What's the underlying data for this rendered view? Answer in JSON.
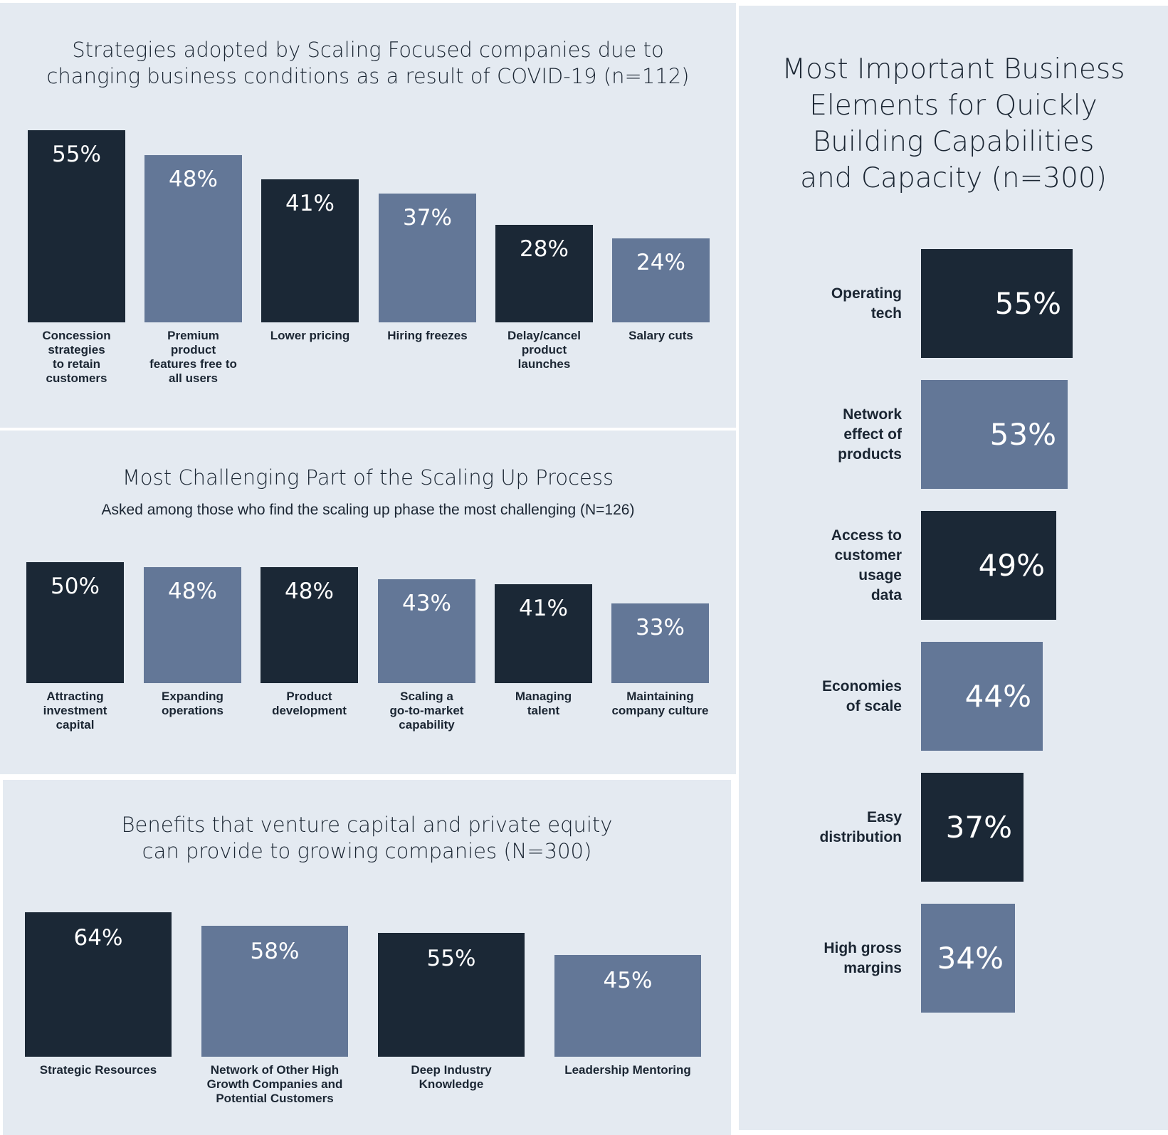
{
  "colors": {
    "dark": "#1b2836",
    "light": "#637797",
    "panel": "#e4eaf1"
  },
  "chart_data": [
    {
      "id": "p1",
      "type": "bar",
      "title": "Strategies adopted by Scaling Focused companies due to\nchanging business conditions as a result of COVID-19 (n=112)",
      "categories": [
        "Concession\nstrategies\nto retain\ncustomers",
        "Premium\nproduct\nfeatures free to\nall users",
        "Lower pricing",
        "Hiring freezes",
        "Delay/cancel\nproduct\nlaunches",
        "Salary cuts"
      ],
      "values": [
        55,
        48,
        41,
        37,
        28,
        24
      ],
      "labels": [
        "55%",
        "48%",
        "41%",
        "37%",
        "28%",
        "24%"
      ]
    },
    {
      "id": "p2",
      "type": "bar",
      "title": "Most Challenging Part of the Scaling Up Process",
      "subtitle": "Asked among those who find the scaling up phase the most challenging (N=126)",
      "categories": [
        "Attracting\ninvestment\ncapital",
        "Expanding\noperations",
        "Product\ndevelopment",
        "Scaling a\ngo-to-market\ncapability",
        "Managing\ntalent",
        "Maintaining\ncompany culture"
      ],
      "values": [
        50,
        48,
        48,
        43,
        41,
        33
      ],
      "labels": [
        "50%",
        "48%",
        "48%",
        "43%",
        "41%",
        "33%"
      ]
    },
    {
      "id": "p3",
      "type": "bar",
      "title": "Benefits that venture capital and private equity\ncan provide to growing companies (N=300)",
      "categories": [
        "Strategic Resources",
        "Network of Other High\nGrowth Companies and\nPotential Customers",
        "Deep Industry\nKnowledge",
        "Leadership Mentoring"
      ],
      "values": [
        64,
        58,
        55,
        45
      ],
      "labels": [
        "64%",
        "58%",
        "55%",
        "45%"
      ]
    },
    {
      "id": "p4",
      "type": "bar",
      "orientation": "horizontal",
      "title": "Most Important Business\nElements for Quickly\nBuilding Capabilities\nand Capacity (n=300)",
      "categories": [
        "Operating\ntech",
        "Network\neffect of\nproducts",
        "Access to\ncustomer\nusage\ndata",
        "Economies\nof scale",
        "Easy\ndistribution",
        "High gross\nmargins"
      ],
      "values": [
        55,
        53,
        49,
        44,
        37,
        34
      ],
      "labels": [
        "55%",
        "53%",
        "49%",
        "44%",
        "37%",
        "34%"
      ]
    }
  ]
}
